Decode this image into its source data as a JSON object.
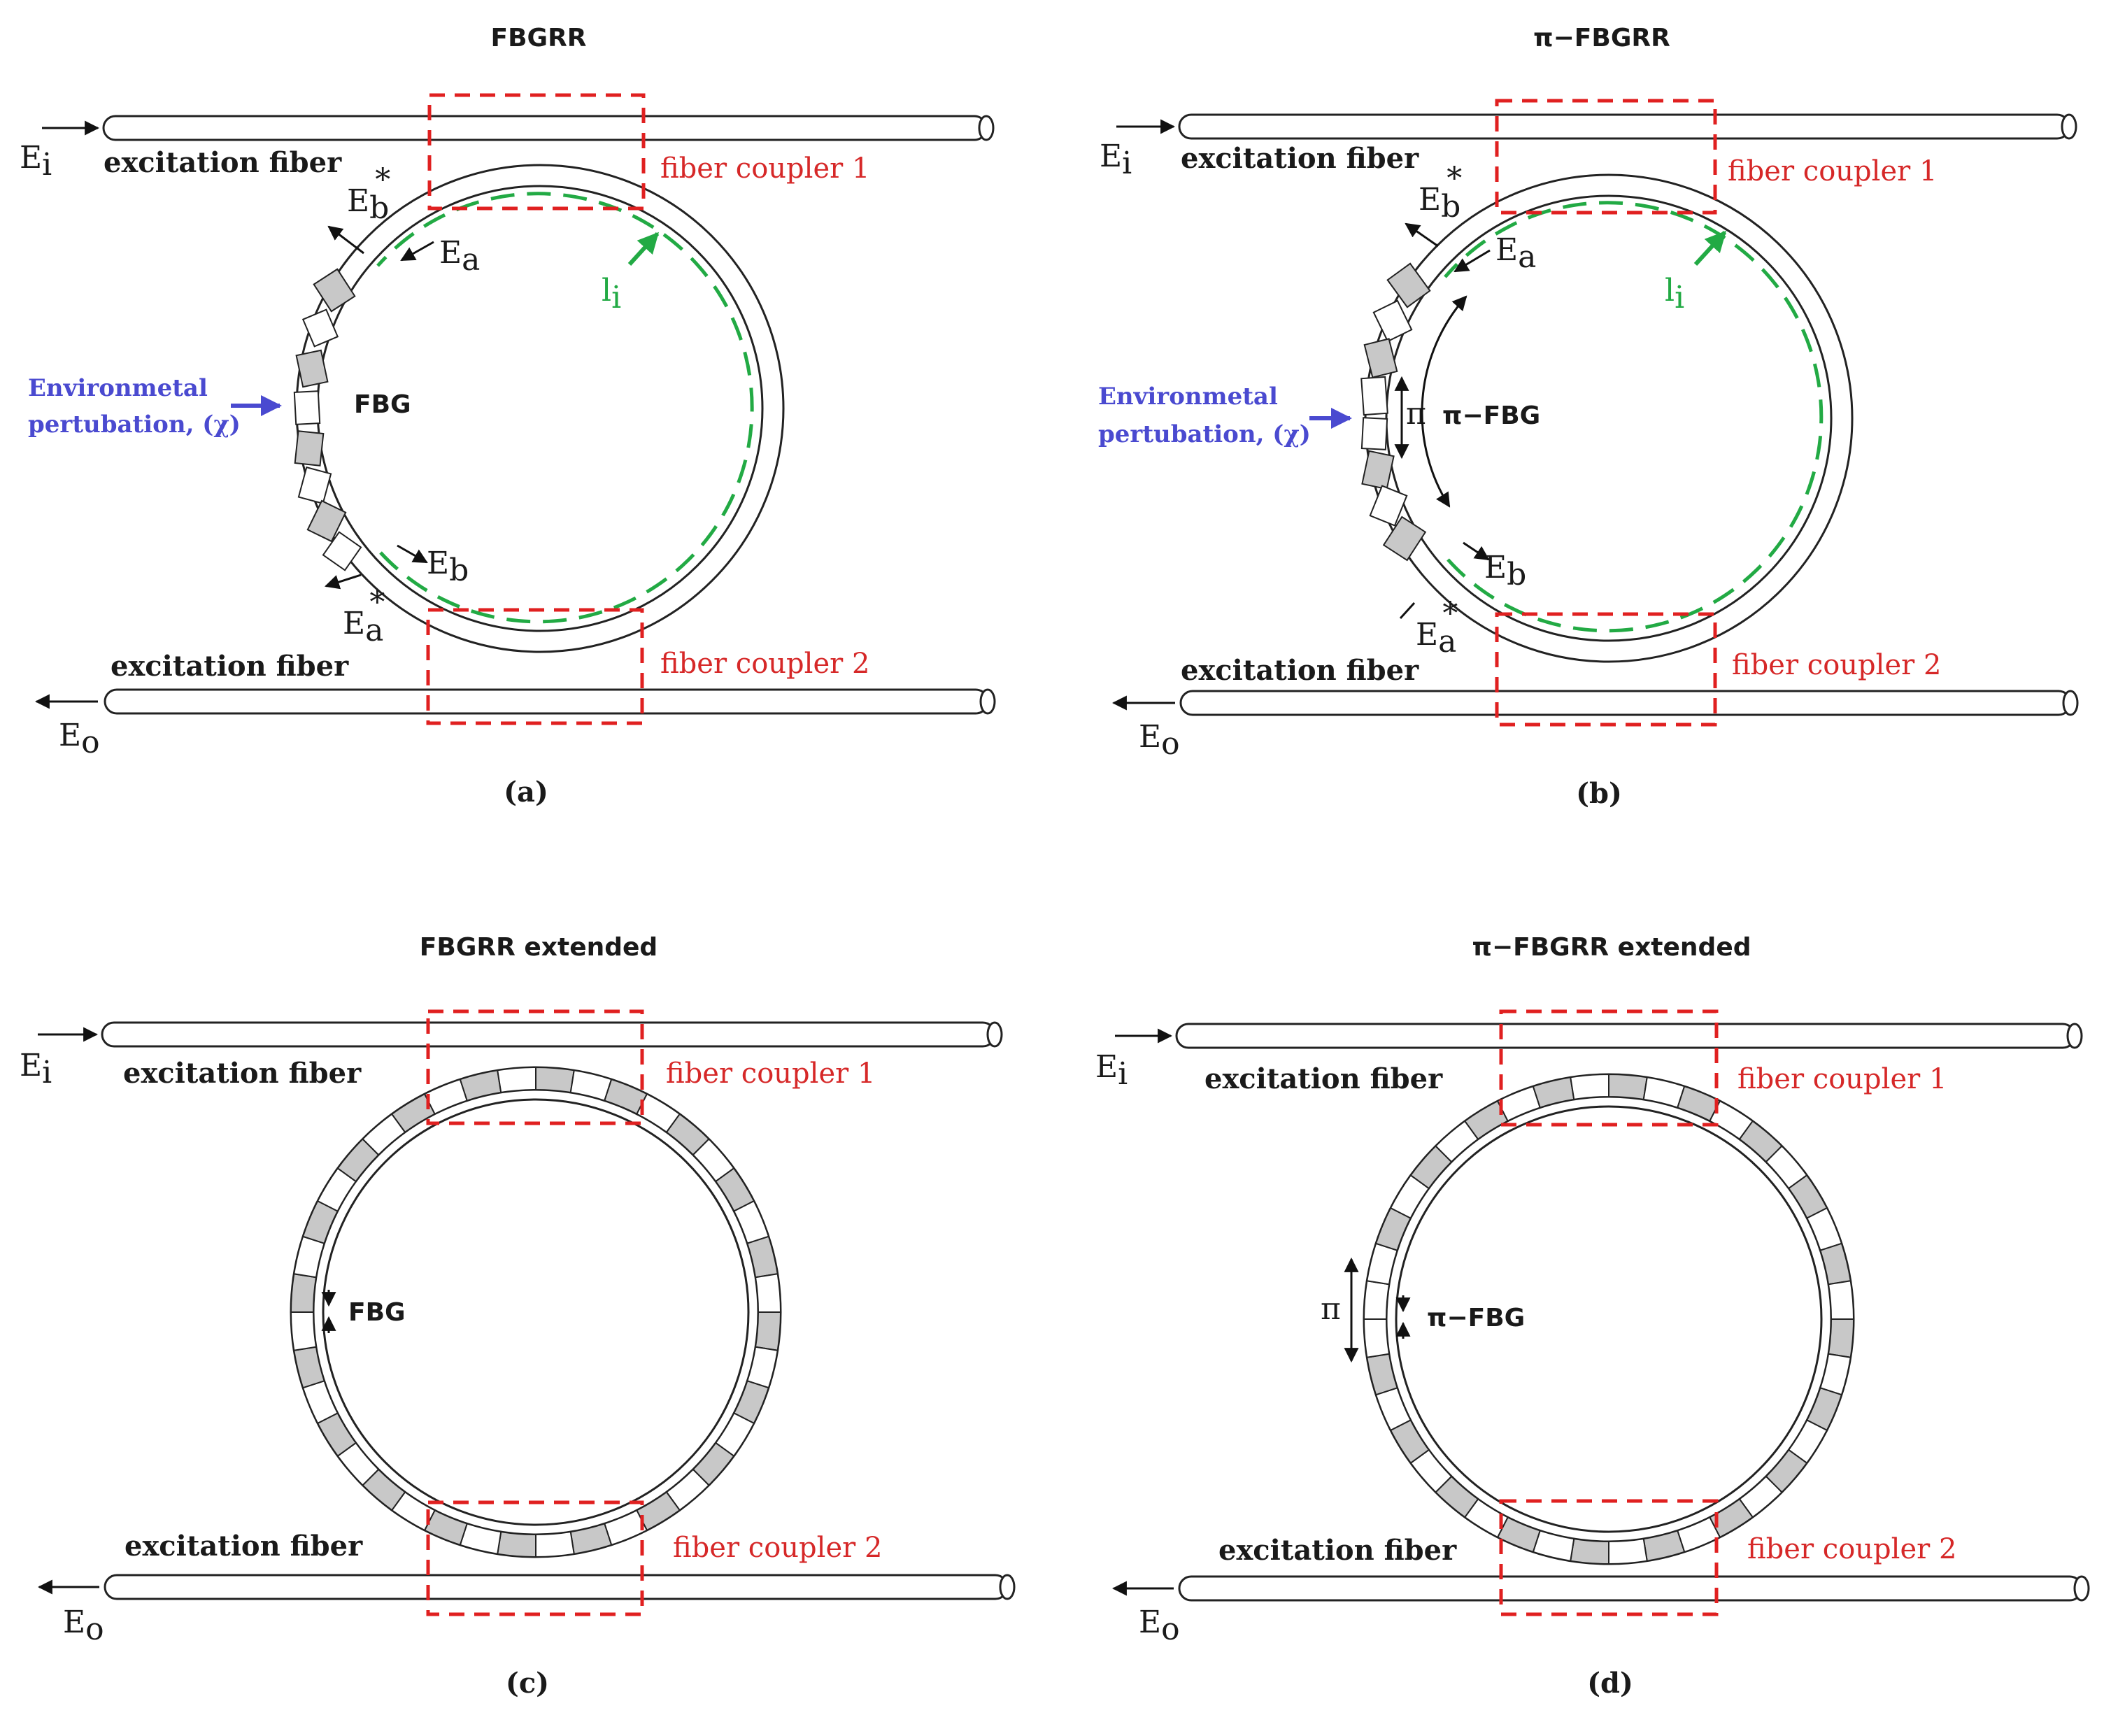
{
  "panels": {
    "a": {
      "title": "FBGRR",
      "caption": "(a)",
      "input_label": "E",
      "input_sub": "i",
      "output_label": "E",
      "output_sub": "o",
      "fiber_top_label": "excitation fiber",
      "fiber_bottom_label": "excitation fiber",
      "coupler1_label": "fiber coupler 1",
      "coupler2_label": "fiber coupler 2",
      "env_line1": "Environmetal",
      "env_line2": "pertubation, (χ)",
      "fbg_label": "FBG",
      "ea_label": "E",
      "ea_sub": "a",
      "eb_label": "E",
      "eb_sub": "b",
      "eb_star_label": "E",
      "eb_star_sub": "b",
      "ea_star_label": "E",
      "ea_star_sub": "a",
      "star": "*",
      "l_label": "l",
      "l_sub": "i"
    },
    "b": {
      "title": "π−FBGRR",
      "caption": "(b)",
      "input_label": "E",
      "input_sub": "i",
      "output_label": "E",
      "output_sub": "o",
      "fiber_top_label": "excitation fiber",
      "fiber_bottom_label": "excitation fiber",
      "coupler1_label": "fiber coupler 1",
      "coupler2_label": "fiber coupler 2",
      "env_line1": "Environmetal",
      "env_line2": "pertubation, (χ)",
      "fbg_label": "π−FBG",
      "pi_label": "π",
      "ea_label": "E",
      "ea_sub": "a",
      "eb_label": "E",
      "eb_sub": "b",
      "eb_star_label": "E",
      "eb_star_sub": "b",
      "ea_star_label": "E",
      "ea_star_sub": "a",
      "star": "*",
      "l_label": "l",
      "l_sub": "i"
    },
    "c": {
      "title": "FBGRR extended",
      "caption": "(c)",
      "input_label": "E",
      "input_sub": "i",
      "output_label": "E",
      "output_sub": "o",
      "fiber_top_label": "excitation fiber",
      "fiber_bottom_label": "excitation fiber",
      "coupler1_label": "fiber coupler 1",
      "coupler2_label": "fiber coupler 2",
      "fbg_label": "FBG"
    },
    "d": {
      "title": "π−FBGRR extended",
      "caption": "(d)",
      "input_label": "E",
      "input_sub": "i",
      "output_label": "E",
      "output_sub": "o",
      "fiber_top_label": "excitation fiber",
      "fiber_bottom_label": "excitation fiber",
      "coupler1_label": "fiber coupler 1",
      "coupler2_label": "fiber coupler 2",
      "fbg_label": "π−FBG",
      "pi_label": "π"
    }
  },
  "colors": {
    "coupler": "#e02020",
    "light_path": "#22aa44",
    "environment": "#4a4ad0",
    "grating": "#c8c8c8"
  }
}
